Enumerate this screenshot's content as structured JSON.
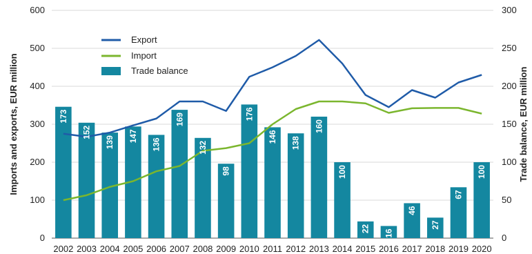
{
  "chart_data": {
    "type": "bar+line",
    "categories": [
      "2002",
      "2003",
      "2004",
      "2005",
      "2006",
      "2007",
      "2008",
      "2009",
      "2010",
      "2011",
      "2012",
      "2013",
      "2014",
      "2015",
      "2016",
      "2017",
      "2018",
      "2019",
      "2020"
    ],
    "series": [
      {
        "name": "Export",
        "type": "line",
        "axis": "left",
        "color": "#1f5ba8",
        "values": [
          275,
          267,
          278,
          297,
          315,
          360,
          360,
          335,
          425,
          450,
          480,
          522,
          460,
          377,
          345,
          390,
          370,
          410,
          430
        ]
      },
      {
        "name": "Import",
        "type": "line",
        "axis": "left",
        "color": "#7bb62e",
        "values": [
          100,
          113,
          135,
          150,
          176,
          190,
          230,
          237,
          250,
          300,
          340,
          360,
          360,
          355,
          330,
          342,
          343,
          343,
          328
        ]
      },
      {
        "name": "Trade balance",
        "type": "bar",
        "axis": "right",
        "color": "#1487a0",
        "values": [
          173,
          152,
          139,
          147,
          136,
          169,
          132,
          98,
          176,
          146,
          138,
          160,
          100,
          22,
          16,
          46,
          27,
          67,
          100
        ]
      }
    ],
    "left_axis": {
      "label": "Imports and exports, EUR million",
      "min": 0,
      "max": 600,
      "ticks": [
        "0",
        "100",
        "200",
        "300",
        "400",
        "500",
        "600"
      ]
    },
    "right_axis": {
      "label": "Trade balance, EUR million",
      "min": 0,
      "max": 300,
      "ticks": [
        "0",
        "50",
        "100",
        "150",
        "200",
        "250",
        "300"
      ]
    },
    "grid": true,
    "legend_position": "top-left"
  }
}
